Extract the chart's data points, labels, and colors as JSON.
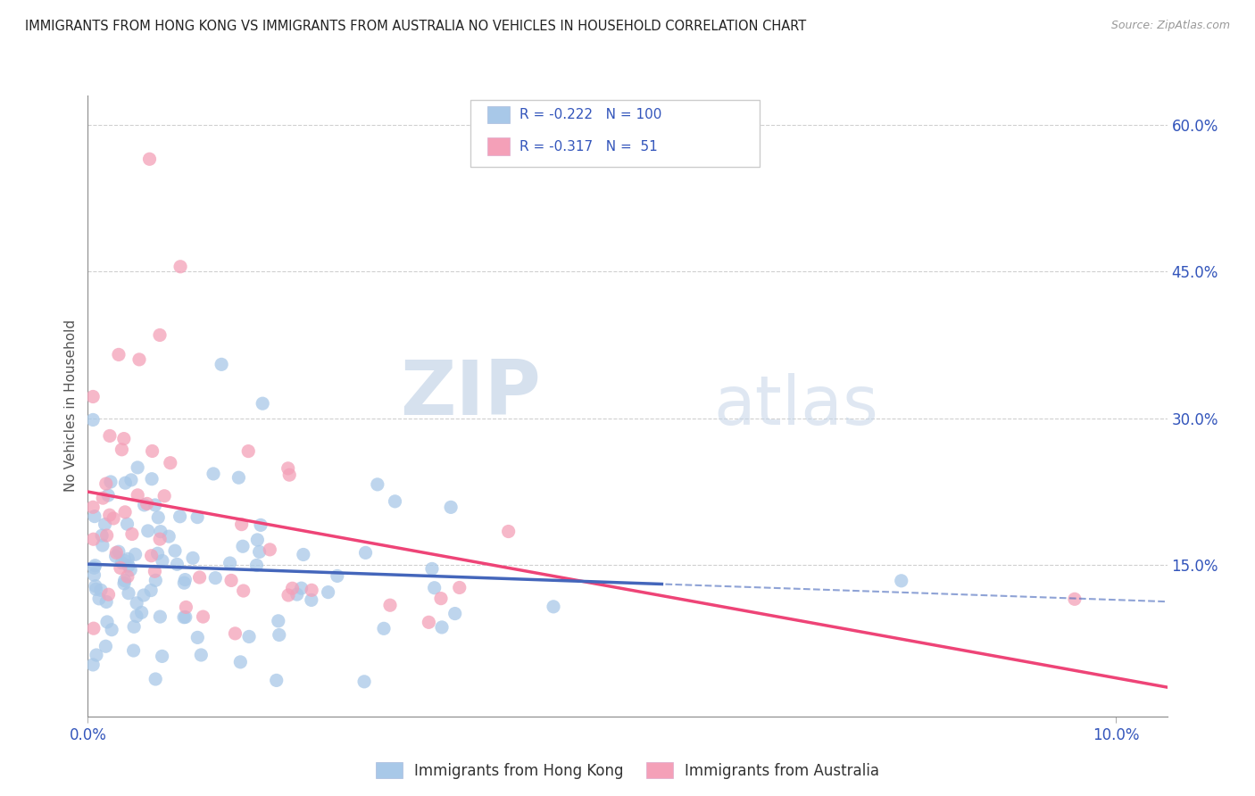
{
  "title": "IMMIGRANTS FROM HONG KONG VS IMMIGRANTS FROM AUSTRALIA NO VEHICLES IN HOUSEHOLD CORRELATION CHART",
  "source": "Source: ZipAtlas.com",
  "ylabel": "No Vehicles in Household",
  "xlim": [
    0.0,
    0.105
  ],
  "ylim": [
    -0.005,
    0.63
  ],
  "R_hk": -0.222,
  "N_hk": 100,
  "R_au": -0.317,
  "N_au": 51,
  "color_hk": "#a8c8e8",
  "color_au": "#f4a0b8",
  "line_color_hk": "#4466bb",
  "line_color_au": "#ee4477",
  "text_color": "#3355bb",
  "watermark_zip": "ZIP",
  "watermark_atlas": "atlas",
  "legend_label_hk": "Immigrants from Hong Kong",
  "legend_label_au": "Immigrants from Australia",
  "hk_intercept": 0.155,
  "hk_slope": -1.35,
  "au_intercept": 0.215,
  "au_slope": -2.2
}
